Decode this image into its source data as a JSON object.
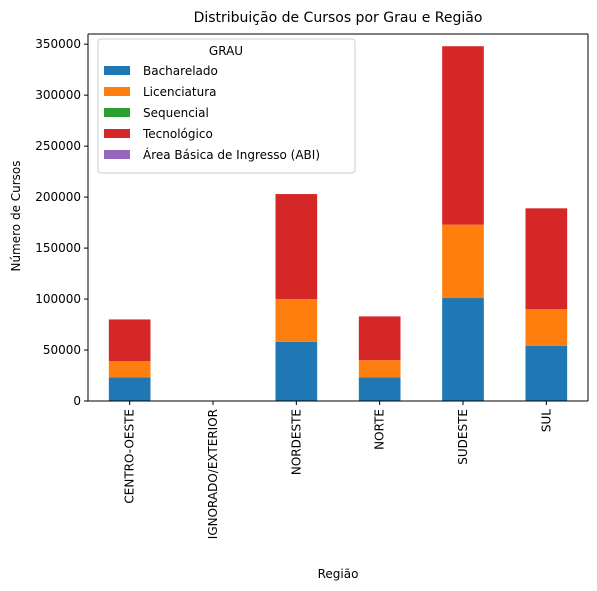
{
  "chart_data": {
    "type": "bar",
    "stacked": true,
    "title": "Distribuição de Cursos por Grau e Região",
    "xlabel": "Região",
    "ylabel": "Número de Cursos",
    "ylim": [
      0,
      360000
    ],
    "yticks": [
      0,
      50000,
      100000,
      150000,
      200000,
      250000,
      300000,
      350000
    ],
    "categories": [
      "CENTRO-OESTE",
      "IGNORADO/EXTERIOR",
      "NORDESTE",
      "NORTE",
      "SUDESTE",
      "SUL"
    ],
    "legend": {
      "title": "GRAU",
      "placement": "top-left"
    },
    "grid": false,
    "series": [
      {
        "name": "Bacharelado",
        "color": "#1f77b4",
        "values": [
          23000,
          0,
          58000,
          23000,
          101000,
          54000
        ]
      },
      {
        "name": "Licenciatura",
        "color": "#ff7f0e",
        "values": [
          16000,
          0,
          42000,
          17000,
          72000,
          36000
        ]
      },
      {
        "name": "Sequencial",
        "color": "#2ca02c",
        "values": [
          0,
          0,
          0,
          0,
          0,
          0
        ]
      },
      {
        "name": "Tecnológico",
        "color": "#d62728",
        "values": [
          41000,
          0,
          103000,
          43000,
          175000,
          99000
        ]
      },
      {
        "name": "Área Básica de Ingresso (ABI)",
        "color": "#9467bd",
        "values": [
          0,
          0,
          0,
          0,
          0,
          0
        ]
      }
    ]
  }
}
